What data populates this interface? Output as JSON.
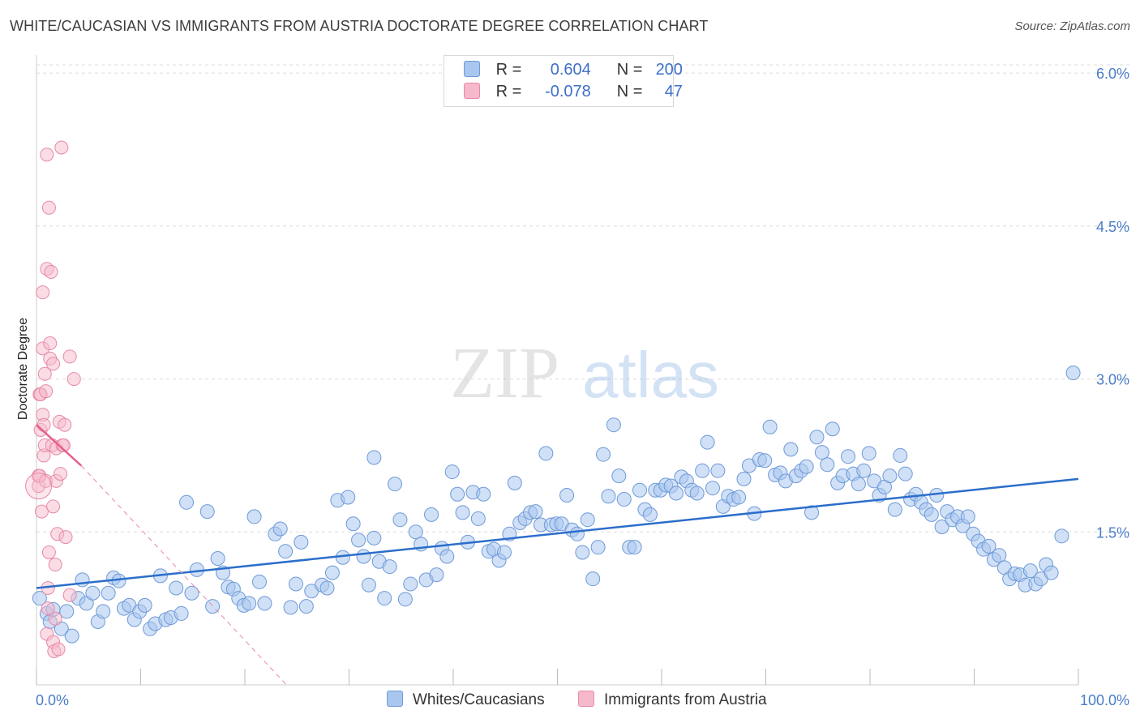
{
  "header": {
    "title": "WHITE/CAUCASIAN VS IMMIGRANTS FROM AUSTRIA DOCTORATE DEGREE CORRELATION CHART",
    "source": "Source: ZipAtlas.com"
  },
  "watermark": {
    "zip": "ZIP",
    "atlas": "atlas"
  },
  "legend": {
    "rows": [
      {
        "r_label": "R =",
        "r_value": "0.604",
        "n_label": "N =",
        "n_value": "200"
      },
      {
        "r_label": "R =",
        "r_value": "-0.078",
        "n_label": "N =",
        "n_value": "47"
      }
    ]
  },
  "bottom_legend": {
    "items": [
      "Whites/Caucasians",
      "Immigrants from Austria"
    ]
  },
  "colors": {
    "blue_fill": "#a9c6ee",
    "blue_stroke": "#6e9ad8",
    "blue_line": "#2b6ecb",
    "pink_fill": "#f6b9cc",
    "pink_stroke": "#e889a6",
    "pink_line": "#e5628a",
    "grid": "#dcdcdc",
    "tick": "#4a7cc7"
  },
  "chart_data": {
    "type": "scatter",
    "ylabel": "Doctorate Degree",
    "x_tick_labels": [
      "0.0%",
      "100.0%"
    ],
    "y_tick_labels": [
      "1.5%",
      "3.0%",
      "4.5%",
      "6.0%"
    ],
    "y_ticks": [
      1.5,
      3.0,
      4.5,
      6.0
    ],
    "xlim": [
      0,
      100
    ],
    "ylim": [
      0,
      6.2
    ],
    "grid": true,
    "series": [
      {
        "name": "Whites/Caucasians",
        "color": "#a9c6ee",
        "trend": {
          "x": [
            0,
            100
          ],
          "y": [
            0.95,
            2.02
          ]
        },
        "points": [
          [
            0.3,
            0.85
          ],
          [
            1.0,
            0.7
          ],
          [
            1.3,
            0.62
          ],
          [
            1.6,
            0.74
          ],
          [
            2.4,
            0.55
          ],
          [
            2.9,
            0.72
          ],
          [
            3.4,
            0.48
          ],
          [
            4.0,
            0.85
          ],
          [
            4.4,
            1.03
          ],
          [
            4.8,
            0.8
          ],
          [
            5.4,
            0.9
          ],
          [
            5.9,
            0.62
          ],
          [
            6.4,
            0.72
          ],
          [
            6.9,
            0.9
          ],
          [
            7.4,
            1.05
          ],
          [
            7.9,
            1.02
          ],
          [
            8.4,
            0.75
          ],
          [
            8.9,
            0.78
          ],
          [
            9.4,
            0.64
          ],
          [
            9.9,
            0.72
          ],
          [
            10.4,
            0.78
          ],
          [
            10.9,
            0.55
          ],
          [
            11.4,
            0.6
          ],
          [
            11.9,
            1.07
          ],
          [
            12.4,
            0.64
          ],
          [
            12.9,
            0.66
          ],
          [
            13.4,
            0.95
          ],
          [
            13.9,
            0.7
          ],
          [
            14.4,
            1.79
          ],
          [
            14.9,
            0.9
          ],
          [
            15.4,
            1.13
          ],
          [
            16.4,
            1.7
          ],
          [
            16.9,
            0.77
          ],
          [
            17.4,
            1.24
          ],
          [
            17.9,
            1.1
          ],
          [
            18.4,
            0.96
          ],
          [
            18.9,
            0.94
          ],
          [
            19.4,
            0.85
          ],
          [
            19.9,
            0.78
          ],
          [
            20.4,
            0.8
          ],
          [
            20.9,
            1.65
          ],
          [
            21.4,
            1.01
          ],
          [
            21.9,
            0.8
          ],
          [
            22.9,
            1.48
          ],
          [
            23.4,
            1.53
          ],
          [
            23.9,
            1.31
          ],
          [
            24.4,
            0.76
          ],
          [
            24.9,
            0.99
          ],
          [
            25.4,
            1.4
          ],
          [
            25.9,
            0.77
          ],
          [
            26.4,
            0.92
          ],
          [
            27.4,
            0.98
          ],
          [
            27.9,
            0.95
          ],
          [
            28.4,
            1.1
          ],
          [
            28.9,
            1.81
          ],
          [
            29.4,
            1.25
          ],
          [
            29.9,
            1.84
          ],
          [
            30.4,
            1.58
          ],
          [
            30.9,
            1.42
          ],
          [
            31.4,
            1.26
          ],
          [
            31.9,
            0.98
          ],
          [
            32.4,
            1.44
          ],
          [
            32.4,
            2.23
          ],
          [
            32.9,
            1.21
          ],
          [
            33.4,
            0.85
          ],
          [
            33.9,
            1.16
          ],
          [
            34.4,
            1.97
          ],
          [
            34.9,
            1.62
          ],
          [
            35.4,
            0.84
          ],
          [
            35.9,
            0.99
          ],
          [
            36.4,
            1.5
          ],
          [
            36.9,
            1.38
          ],
          [
            37.4,
            1.03
          ],
          [
            37.9,
            1.67
          ],
          [
            38.4,
            1.08
          ],
          [
            38.9,
            1.34
          ],
          [
            39.4,
            1.26
          ],
          [
            39.9,
            2.09
          ],
          [
            40.4,
            1.87
          ],
          [
            40.9,
            1.69
          ],
          [
            41.4,
            1.4
          ],
          [
            41.9,
            1.89
          ],
          [
            42.4,
            1.63
          ],
          [
            42.9,
            1.87
          ],
          [
            43.4,
            1.31
          ],
          [
            43.9,
            1.33
          ],
          [
            44.4,
            1.22
          ],
          [
            44.9,
            1.3
          ],
          [
            45.4,
            1.48
          ],
          [
            45.9,
            1.98
          ],
          [
            46.4,
            1.59
          ],
          [
            46.9,
            1.63
          ],
          [
            47.4,
            1.69
          ],
          [
            47.9,
            1.7
          ],
          [
            48.4,
            1.57
          ],
          [
            48.9,
            2.27
          ],
          [
            49.4,
            1.57
          ],
          [
            49.9,
            1.58
          ],
          [
            50.4,
            1.58
          ],
          [
            50.9,
            1.86
          ],
          [
            51.4,
            1.52
          ],
          [
            51.9,
            1.48
          ],
          [
            52.4,
            1.3
          ],
          [
            52.9,
            1.62
          ],
          [
            53.4,
            1.04
          ],
          [
            53.9,
            1.35
          ],
          [
            54.4,
            2.26
          ],
          [
            54.9,
            1.85
          ],
          [
            55.4,
            2.55
          ],
          [
            55.9,
            2.05
          ],
          [
            56.4,
            1.82
          ],
          [
            56.9,
            1.35
          ],
          [
            57.4,
            1.35
          ],
          [
            57.9,
            1.91
          ],
          [
            58.4,
            1.72
          ],
          [
            58.9,
            1.67
          ],
          [
            59.4,
            1.91
          ],
          [
            59.9,
            1.91
          ],
          [
            60.4,
            1.96
          ],
          [
            60.9,
            1.95
          ],
          [
            61.4,
            1.88
          ],
          [
            61.9,
            2.04
          ],
          [
            62.4,
            2.0
          ],
          [
            62.9,
            1.91
          ],
          [
            63.4,
            1.88
          ],
          [
            63.9,
            2.1
          ],
          [
            64.4,
            2.38
          ],
          [
            64.9,
            1.93
          ],
          [
            65.4,
            2.1
          ],
          [
            65.9,
            1.75
          ],
          [
            66.4,
            1.85
          ],
          [
            66.9,
            1.82
          ],
          [
            67.4,
            1.84
          ],
          [
            67.9,
            2.02
          ],
          [
            68.4,
            2.15
          ],
          [
            68.9,
            1.68
          ],
          [
            69.4,
            2.21
          ],
          [
            69.9,
            2.2
          ],
          [
            70.4,
            2.53
          ],
          [
            70.9,
            2.06
          ],
          [
            71.4,
            2.08
          ],
          [
            71.9,
            2.0
          ],
          [
            72.4,
            2.31
          ],
          [
            72.9,
            2.05
          ],
          [
            73.4,
            2.1
          ],
          [
            73.9,
            2.14
          ],
          [
            74.4,
            1.69
          ],
          [
            74.9,
            2.43
          ],
          [
            75.4,
            2.28
          ],
          [
            75.9,
            2.16
          ],
          [
            76.4,
            2.51
          ],
          [
            76.9,
            1.98
          ],
          [
            77.4,
            2.05
          ],
          [
            77.9,
            2.24
          ],
          [
            78.4,
            2.07
          ],
          [
            78.9,
            1.97
          ],
          [
            79.4,
            2.1
          ],
          [
            79.9,
            2.27
          ],
          [
            80.4,
            2.0
          ],
          [
            80.9,
            1.86
          ],
          [
            81.4,
            1.94
          ],
          [
            81.9,
            2.05
          ],
          [
            82.4,
            1.72
          ],
          [
            82.9,
            2.25
          ],
          [
            83.4,
            2.07
          ],
          [
            83.9,
            1.82
          ],
          [
            84.4,
            1.87
          ],
          [
            84.9,
            1.79
          ],
          [
            85.4,
            1.72
          ],
          [
            85.9,
            1.67
          ],
          [
            86.4,
            1.86
          ],
          [
            86.9,
            1.55
          ],
          [
            87.4,
            1.7
          ],
          [
            87.9,
            1.62
          ],
          [
            88.4,
            1.65
          ],
          [
            88.9,
            1.56
          ],
          [
            89.4,
            1.65
          ],
          [
            89.9,
            1.48
          ],
          [
            90.4,
            1.41
          ],
          [
            90.9,
            1.33
          ],
          [
            91.4,
            1.36
          ],
          [
            91.9,
            1.23
          ],
          [
            92.4,
            1.27
          ],
          [
            92.9,
            1.15
          ],
          [
            93.4,
            1.04
          ],
          [
            93.9,
            1.09
          ],
          [
            94.4,
            1.08
          ],
          [
            94.9,
            0.98
          ],
          [
            95.4,
            1.12
          ],
          [
            95.9,
            0.99
          ],
          [
            96.4,
            1.04
          ],
          [
            96.9,
            1.18
          ],
          [
            97.4,
            1.1
          ],
          [
            98.4,
            1.46
          ],
          [
            99.5,
            3.06
          ]
        ]
      },
      {
        "name": "Immigrants from Austria",
        "color": "#f6b9cc",
        "trend": {
          "x": [
            0,
            4.3
          ],
          "y": [
            2.55,
            2.15
          ],
          "dashed_to": [
            24.0,
            0.0
          ]
        },
        "points": [
          [
            0.2,
            1.95
          ],
          [
            0.2,
            2.05
          ],
          [
            0.3,
            2.05
          ],
          [
            0.3,
            2.85
          ],
          [
            0.4,
            2.85
          ],
          [
            0.4,
            2.5
          ],
          [
            0.5,
            1.7
          ],
          [
            0.6,
            3.3
          ],
          [
            0.6,
            3.85
          ],
          [
            0.6,
            2.65
          ],
          [
            0.7,
            2.55
          ],
          [
            0.7,
            2.25
          ],
          [
            0.8,
            3.05
          ],
          [
            0.8,
            2.35
          ],
          [
            0.9,
            2.0
          ],
          [
            0.9,
            2.88
          ],
          [
            1.0,
            5.2
          ],
          [
            1.0,
            4.08
          ],
          [
            1.0,
            0.5
          ],
          [
            1.1,
            0.95
          ],
          [
            1.1,
            0.75
          ],
          [
            1.2,
            4.68
          ],
          [
            1.2,
            1.3
          ],
          [
            1.3,
            3.35
          ],
          [
            1.3,
            3.2
          ],
          [
            1.4,
            4.05
          ],
          [
            1.5,
            2.35
          ],
          [
            1.6,
            1.75
          ],
          [
            1.6,
            3.15
          ],
          [
            1.6,
            0.42
          ],
          [
            1.7,
            0.33
          ],
          [
            1.8,
            1.18
          ],
          [
            1.8,
            0.65
          ],
          [
            1.9,
            2.0
          ],
          [
            1.9,
            2.32
          ],
          [
            2.0,
            1.48
          ],
          [
            2.1,
            0.35
          ],
          [
            2.2,
            2.58
          ],
          [
            2.3,
            2.07
          ],
          [
            2.4,
            5.27
          ],
          [
            2.5,
            2.35
          ],
          [
            2.6,
            2.35
          ],
          [
            2.7,
            2.55
          ],
          [
            2.8,
            1.45
          ],
          [
            3.2,
            0.88
          ],
          [
            3.2,
            3.22
          ],
          [
            3.6,
            3.0
          ]
        ]
      }
    ]
  }
}
